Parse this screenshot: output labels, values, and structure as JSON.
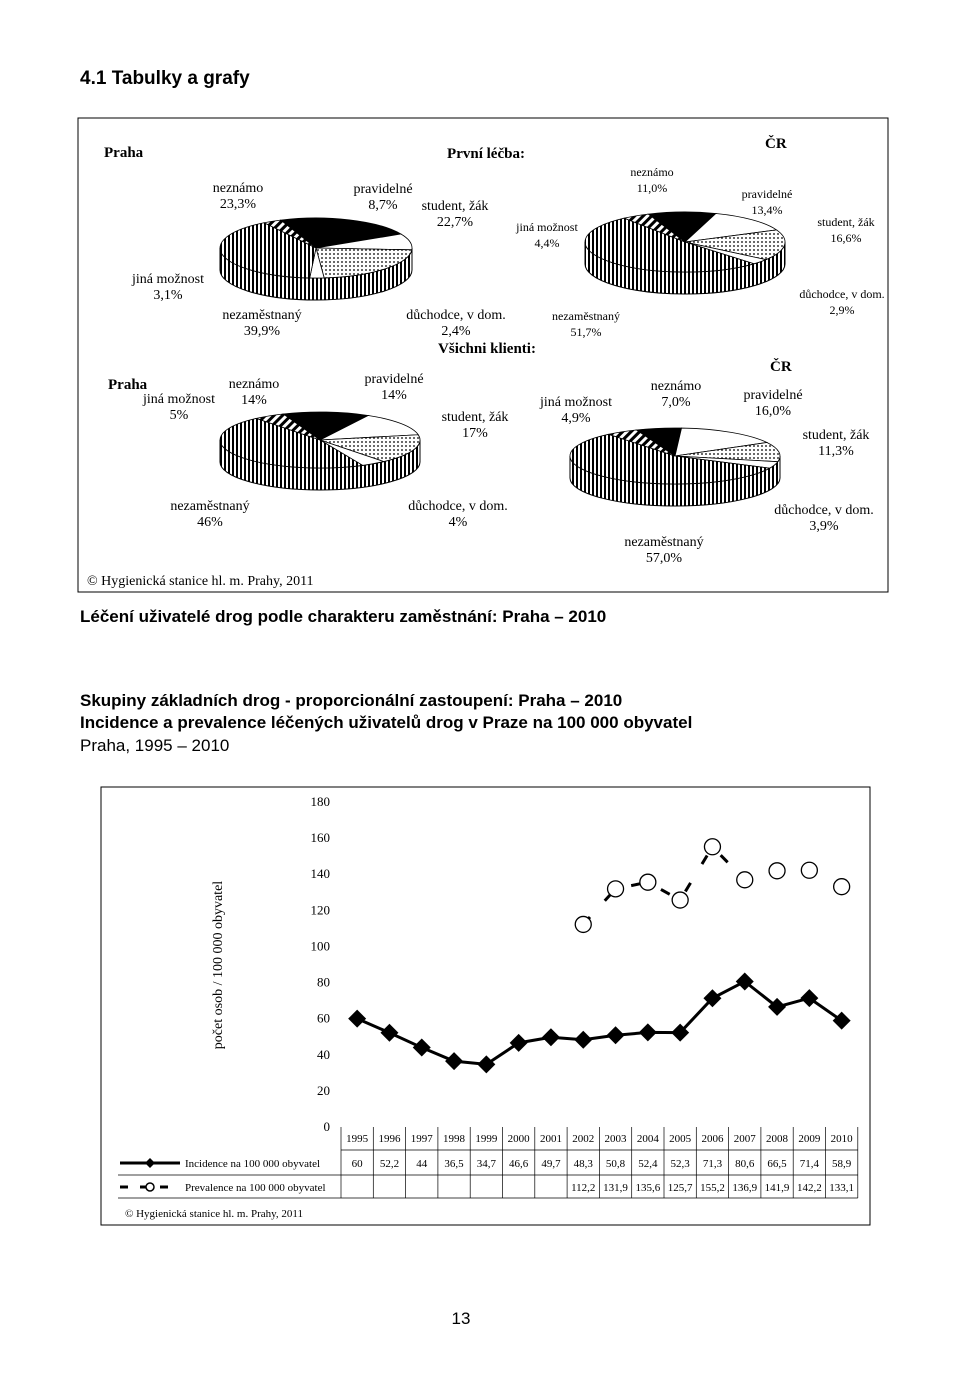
{
  "document": {
    "heading": "4.1 Tabulky a grafy",
    "figure1_credit": "© Hygienická stanice hl. m. Prahy, 2011",
    "figure1_caption": "Léčení uživatelé drog podle charakteru zaměstnání: Praha – 2010",
    "lines": [
      "Skupiny základních drog - proporcionální zastoupení: Praha – 2010",
      "Incidence a prevalence léčených uživatelů drog v Praze na 100 000 obyvatel",
      "Praha, 1995 – 2010"
    ],
    "figure2_credit": "© Hygienická stanice hl. m. Prahy, 2011",
    "page_number": "13"
  },
  "chart_data": [
    {
      "type": "pie",
      "title": "Praha",
      "subtitle": "První léčba:",
      "categories": [
        "neznámo",
        "pravidelné",
        "student, žák",
        "důchodce, v dom.",
        "nezaměstnaný",
        "jiná možnost"
      ],
      "values": [
        23.3,
        8.7,
        22.7,
        2.4,
        39.9,
        3.1
      ],
      "value_labels": [
        "23,3%",
        "8,7%",
        "22,7%",
        "2,4%",
        "39,9%",
        "3,1%"
      ]
    },
    {
      "type": "pie",
      "title": "ČR",
      "categories": [
        "neznámo",
        "pravidelné",
        "student, žák",
        "důchodce, v dom.",
        "nezaměstnaný",
        "jiná možnost"
      ],
      "values": [
        11.0,
        13.4,
        16.6,
        2.9,
        51.7,
        4.4
      ],
      "value_labels": [
        "11,0%",
        "13,4%",
        "16,6%",
        "2,9%",
        "51,7%",
        "4,4%"
      ]
    },
    {
      "type": "pie",
      "title": "Praha",
      "subtitle": "Všichni klienti:",
      "categories": [
        "neznámo",
        "pravidelné",
        "student, žák",
        "důchodce, v dom.",
        "nezaměstnaný",
        "jiná možnost"
      ],
      "values": [
        14,
        14,
        17,
        4,
        46,
        5
      ],
      "value_labels": [
        "14%",
        "14%",
        "17%",
        "4%",
        "46%",
        "5%"
      ]
    },
    {
      "type": "pie",
      "title": "ČR",
      "categories": [
        "neznámo",
        "pravidelné",
        "student, žák",
        "důchodce, v dom.",
        "nezaměstnaný",
        "jiná možnost"
      ],
      "values": [
        7.0,
        16.0,
        11.3,
        3.9,
        57.0,
        4.9
      ],
      "value_labels": [
        "7,0%",
        "16,0%",
        "11,3%",
        "3,9%",
        "57,0%",
        "4,9%"
      ]
    },
    {
      "type": "line",
      "y_label": "počet osob / 100 000 obyvatel",
      "categories": [
        "1995",
        "1996",
        "1997",
        "1998",
        "1999",
        "2000",
        "2001",
        "2002",
        "2003",
        "2004",
        "2005",
        "2006",
        "2007",
        "2008",
        "2009",
        "2010"
      ],
      "series": [
        {
          "name": "Incidence na 100 000 obyvatel",
          "color": "#000000",
          "values": [
            60,
            52.2,
            44,
            36.5,
            34.7,
            46.6,
            49.7,
            48.3,
            50.8,
            52.4,
            52.3,
            71.3,
            80.6,
            66.5,
            71.4,
            58.9
          ],
          "value_labels": [
            "60",
            "52,2",
            "44",
            "36,5",
            "34,7",
            "46,6",
            "49,7",
            "48,3",
            "50,8",
            "52,4",
            "52,3",
            "71,3",
            "80,6",
            "66,5",
            "71,4",
            "58,9"
          ]
        },
        {
          "name": "Prevalence na 100 000 obyvatel",
          "color": "#000000",
          "values": [
            null,
            null,
            null,
            null,
            null,
            null,
            null,
            112.2,
            131.9,
            135.6,
            125.7,
            155.2,
            136.9,
            141.9,
            142.2,
            133.1
          ],
          "value_labels": [
            null,
            null,
            null,
            null,
            null,
            null,
            null,
            "112,2",
            "131,9",
            "135,6",
            "125,7",
            "155,2",
            "136,9",
            "141,9",
            "142,2",
            "133,1"
          ]
        }
      ],
      "ylim": [
        0,
        180
      ],
      "yticks": [
        0,
        20,
        40,
        60,
        80,
        100,
        120,
        140,
        160,
        180
      ]
    }
  ]
}
